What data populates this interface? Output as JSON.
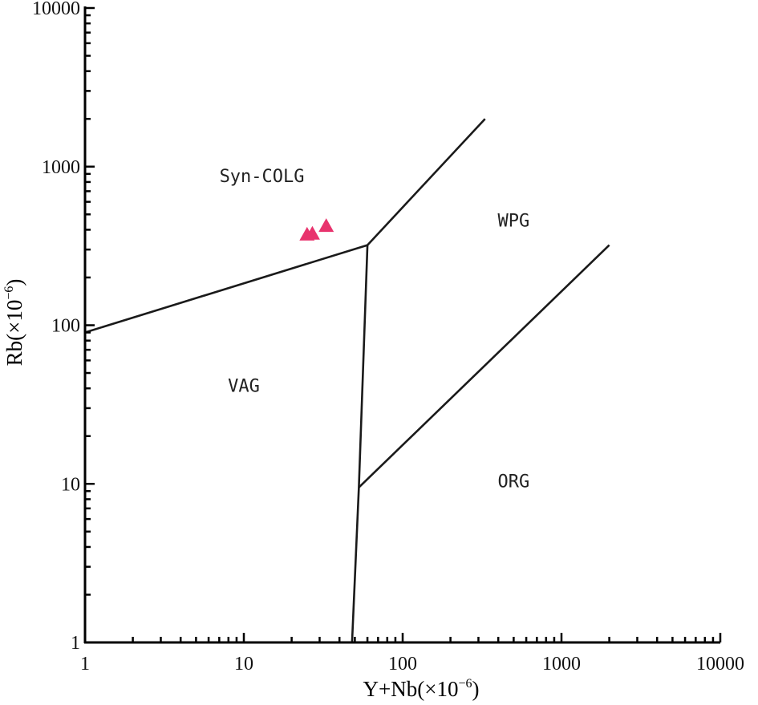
{
  "chart_data": {
    "type": "scatter",
    "xlabel": {
      "base": "Y+Nb(×10",
      "exp": "−6",
      "close": ")"
    },
    "ylabel": {
      "base": "Rb(×10",
      "exp": "−6",
      "close": ")"
    },
    "xscale": "log",
    "yscale": "log",
    "xlim": [
      1,
      10000
    ],
    "ylim": [
      1,
      10000
    ],
    "x_ticks": [
      1,
      10,
      100,
      1000,
      10000
    ],
    "x_tick_labels": [
      "1",
      "10",
      "100",
      "1000",
      "10000"
    ],
    "y_ticks": [
      1,
      10,
      100,
      1000,
      10000
    ],
    "y_tick_labels": [
      "1",
      "10",
      "100",
      "1000",
      "10000"
    ],
    "grid": false,
    "boundaries": [
      {
        "name": "syn-colg-vag",
        "points": [
          [
            1,
            90
          ],
          [
            60,
            320
          ]
        ]
      },
      {
        "name": "syn-colg-wpg",
        "points": [
          [
            60,
            320
          ],
          [
            330,
            2000
          ]
        ]
      },
      {
        "name": "vag-orgwpg",
        "points": [
          [
            60,
            320
          ],
          [
            53,
            9.5
          ],
          [
            48,
            1
          ]
        ]
      },
      {
        "name": "wpg-org",
        "points": [
          [
            53,
            9.5
          ],
          [
            2000,
            320
          ]
        ]
      }
    ],
    "regions": [
      {
        "label": "Syn-COLG",
        "x": 13,
        "y": 800
      },
      {
        "label": "WPG",
        "x": 500,
        "y": 420
      },
      {
        "label": "VAG",
        "x": 10,
        "y": 38
      },
      {
        "label": "ORG",
        "x": 500,
        "y": 9.5
      }
    ],
    "series": [
      {
        "marker": "triangle",
        "color": "#e8336d",
        "points": [
          [
            25,
            370
          ],
          [
            27,
            375
          ],
          [
            33,
            420
          ]
        ]
      }
    ]
  }
}
